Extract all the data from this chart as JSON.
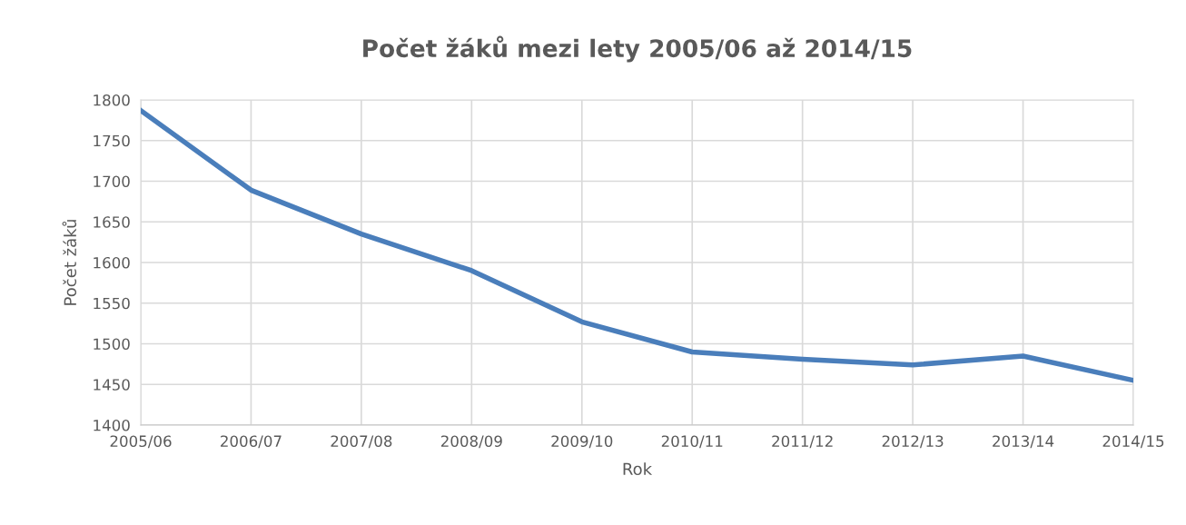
{
  "chart_data": {
    "type": "line",
    "title": "Počet žáků mezi lety 2005/06 až 2014/15",
    "xlabel": "Rok",
    "ylabel": "Počet žáků",
    "categories": [
      "2005/06",
      "2006/07",
      "2007/08",
      "2008/09",
      "2009/10",
      "2010/11",
      "2011/12",
      "2012/13",
      "2013/14",
      "2014/15"
    ],
    "series": [
      {
        "color": "#4a7ebb",
        "values": [
          1787,
          1689,
          1635,
          1590,
          1527,
          1490,
          1481,
          1474,
          1485,
          1455
        ]
      }
    ],
    "ylim": [
      1400,
      1800
    ],
    "yticks": [
      1400,
      1450,
      1500,
      1550,
      1600,
      1650,
      1700,
      1750,
      1800
    ],
    "grid": true,
    "legend": false,
    "marker": "none",
    "line_style": "solid"
  }
}
